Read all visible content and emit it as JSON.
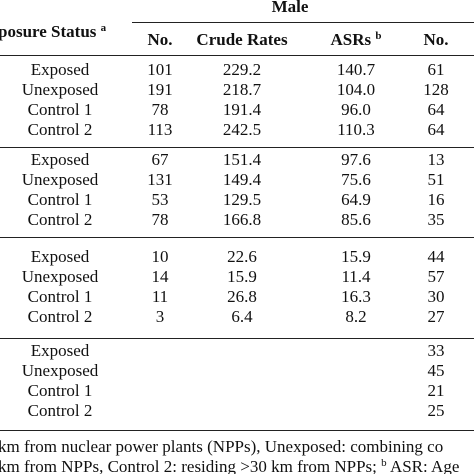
{
  "header": {
    "group": "Male",
    "exposure_status": "posure Status",
    "exposure_status_sup": "a",
    "columns": [
      "No.",
      "Crude Rates",
      "ASRs",
      "No."
    ],
    "asr_sup": "b"
  },
  "table": {
    "groups": [
      [
        {
          "label": "Exposed",
          "no": "101",
          "crude": "229.2",
          "asr": "140.7",
          "no2": "61"
        },
        {
          "label": "Unexposed",
          "no": "191",
          "crude": "218.7",
          "asr": "104.0",
          "no2": "128"
        },
        {
          "label": "Control 1",
          "no": "78",
          "crude": "191.4",
          "asr": "96.0",
          "no2": "64"
        },
        {
          "label": "Control 2",
          "no": "113",
          "crude": "242.5",
          "asr": "110.3",
          "no2": "64"
        }
      ],
      [
        {
          "label": "Exposed",
          "no": "67",
          "crude": "151.4",
          "asr": "97.6",
          "no2": "13"
        },
        {
          "label": "Unexposed",
          "no": "131",
          "crude": "149.4",
          "asr": "75.6",
          "no2": "51"
        },
        {
          "label": "Control 1",
          "no": "53",
          "crude": "129.5",
          "asr": "64.9",
          "no2": "16"
        },
        {
          "label": "Control 2",
          "no": "78",
          "crude": "166.8",
          "asr": "85.6",
          "no2": "35"
        }
      ],
      [
        {
          "label": "Exposed",
          "no": "10",
          "crude": "22.6",
          "asr": "15.9",
          "no2": "44"
        },
        {
          "label": "Unexposed",
          "no": "14",
          "crude": "15.9",
          "asr": "11.4",
          "no2": "57"
        },
        {
          "label": "Control 1",
          "no": "11",
          "crude": "26.8",
          "asr": "16.3",
          "no2": "30"
        },
        {
          "label": "Control 2",
          "no": "3",
          "crude": "6.4",
          "asr": "8.2",
          "no2": "27"
        }
      ],
      [
        {
          "label": "Exposed",
          "no2": "33"
        },
        {
          "label": "Unexposed",
          "no2": "45"
        },
        {
          "label": "Control 1",
          "no2": "21"
        },
        {
          "label": "Control 2",
          "no2": "25"
        }
      ]
    ]
  },
  "footnote": [
    "km from nuclear power plants (NPPs), Unexposed: combining co",
    "km from NPPs, Control 2: residing >30 km from NPPs;",
    "b",
    "ASR: Age"
  ]
}
